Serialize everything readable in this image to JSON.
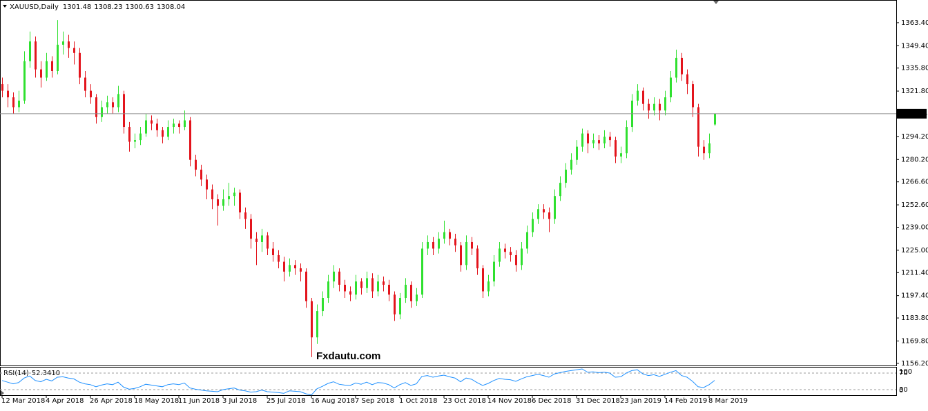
{
  "chart_data": {
    "type": "candlestick",
    "symbol": "XAUUSD,Daily",
    "up_color": "#2fe02f",
    "down_color": "#e3141c",
    "ylim": [
      1154.9,
      1377.2
    ],
    "yticks": [
      {
        "value": 1363.4,
        "label": "1363.40"
      },
      {
        "value": 1349.4,
        "label": "1349.40"
      },
      {
        "value": 1335.8,
        "label": "1335.80"
      },
      {
        "value": 1321.8,
        "label": "1321.80"
      },
      {
        "value": 1294.2,
        "label": "1294.20"
      },
      {
        "value": 1280.2,
        "label": "1280.20"
      },
      {
        "value": 1266.6,
        "label": "1266.60"
      },
      {
        "value": 1252.6,
        "label": "1252.60"
      },
      {
        "value": 1239,
        "label": "1239.00"
      },
      {
        "value": 1225,
        "label": "1225.00"
      },
      {
        "value": 1211.4,
        "label": "1211.40"
      },
      {
        "value": 1197.4,
        "label": "1197.40"
      },
      {
        "value": 1183.8,
        "label": "1183.80"
      },
      {
        "value": 1169.8,
        "label": "1169.80"
      },
      {
        "value": 1156.2,
        "label": "1156.20"
      }
    ],
    "watermark": "Fxdautu.com",
    "categories": [
      "12 Mar 2018",
      null,
      null,
      null,
      null,
      null,
      null,
      null,
      "4 Apr 2018",
      null,
      null,
      null,
      null,
      null,
      null,
      null,
      "26 Apr 2018",
      null,
      null,
      null,
      null,
      null,
      null,
      null,
      "18 May 2018",
      null,
      null,
      null,
      null,
      null,
      null,
      null,
      "11 Jun 2018",
      null,
      null,
      null,
      null,
      null,
      null,
      null,
      "3 Jul 2018",
      null,
      null,
      null,
      null,
      null,
      null,
      null,
      "25 Jul 2018",
      null,
      null,
      null,
      null,
      null,
      null,
      null,
      "16 Aug 2018",
      null,
      null,
      null,
      null,
      null,
      null,
      null,
      "7 Sep 2018",
      null,
      null,
      null,
      null,
      null,
      null,
      null,
      "1 Oct 2018",
      null,
      null,
      null,
      null,
      null,
      null,
      null,
      "23 Oct 2018",
      null,
      null,
      null,
      null,
      null,
      null,
      null,
      "14 Nov 2018",
      null,
      null,
      null,
      null,
      null,
      null,
      null,
      "6 Dec 2018",
      null,
      null,
      null,
      null,
      null,
      null,
      null,
      "31 Dec 2018",
      null,
      null,
      null,
      null,
      null,
      null,
      null,
      "23 Jan 2019",
      null,
      null,
      null,
      null,
      null,
      null,
      null,
      "14 Feb 2019",
      null,
      null,
      null,
      null,
      null,
      null,
      null,
      "8 Mar 2019",
      null
    ],
    "candles": [
      [
        1326,
        1330,
        1318,
        1322
      ],
      [
        1322,
        1326,
        1312,
        1318
      ],
      [
        1318,
        1321,
        1308,
        1312
      ],
      [
        1312,
        1322,
        1309,
        1316
      ],
      [
        1316,
        1346,
        1314,
        1340
      ],
      [
        1340,
        1358,
        1336,
        1352
      ],
      [
        1352,
        1355,
        1330,
        1335
      ],
      [
        1335,
        1340,
        1324,
        1330
      ],
      [
        1330,
        1345,
        1328,
        1340
      ],
      [
        1340,
        1343,
        1330,
        1334
      ],
      [
        1334,
        1365,
        1332,
        1350
      ],
      [
        1350,
        1358,
        1344,
        1352
      ],
      [
        1352,
        1356,
        1342,
        1348
      ],
      [
        1348,
        1352,
        1338,
        1345
      ],
      [
        1345,
        1348,
        1326,
        1330
      ],
      [
        1330,
        1334,
        1318,
        1322
      ],
      [
        1322,
        1326,
        1314,
        1318
      ],
      [
        1318,
        1320,
        1302,
        1306
      ],
      [
        1306,
        1316,
        1303,
        1312
      ],
      [
        1312,
        1319,
        1308,
        1315
      ],
      [
        1315,
        1318,
        1308,
        1312
      ],
      [
        1312,
        1325,
        1309,
        1320
      ],
      [
        1320,
        1322,
        1296,
        1300
      ],
      [
        1300,
        1303,
        1285,
        1291
      ],
      [
        1291,
        1296,
        1287,
        1292
      ],
      [
        1292,
        1300,
        1289,
        1296
      ],
      [
        1296,
        1308,
        1294,
        1304
      ],
      [
        1304,
        1307,
        1298,
        1302
      ],
      [
        1302,
        1305,
        1294,
        1298
      ],
      [
        1298,
        1300,
        1290,
        1294
      ],
      [
        1294,
        1304,
        1292,
        1300
      ],
      [
        1300,
        1305,
        1296,
        1302
      ],
      [
        1302,
        1304,
        1296,
        1300
      ],
      [
        1300,
        1310,
        1298,
        1304
      ],
      [
        1304,
        1306,
        1276,
        1280
      ],
      [
        1280,
        1283,
        1270,
        1274
      ],
      [
        1274,
        1277,
        1264,
        1268
      ],
      [
        1268,
        1271,
        1256,
        1262
      ],
      [
        1262,
        1265,
        1250,
        1256
      ],
      [
        1256,
        1259,
        1240,
        1252
      ],
      [
        1252,
        1262,
        1249,
        1256
      ],
      [
        1256,
        1266,
        1252,
        1258
      ],
      [
        1258,
        1263,
        1252,
        1260
      ],
      [
        1260,
        1262,
        1244,
        1248
      ],
      [
        1248,
        1251,
        1238,
        1244
      ],
      [
        1244,
        1247,
        1226,
        1232
      ],
      [
        1232,
        1236,
        1216,
        1230
      ],
      [
        1230,
        1238,
        1224,
        1234
      ],
      [
        1234,
        1236,
        1222,
        1226
      ],
      [
        1226,
        1230,
        1218,
        1222
      ],
      [
        1222,
        1225,
        1214,
        1218
      ],
      [
        1218,
        1221,
        1206,
        1212
      ],
      [
        1212,
        1220,
        1209,
        1216
      ],
      [
        1216,
        1219,
        1210,
        1214
      ],
      [
        1214,
        1217,
        1206,
        1212
      ],
      [
        1212,
        1214,
        1190,
        1194
      ],
      [
        1194,
        1196,
        1160,
        1172
      ],
      [
        1172,
        1192,
        1168,
        1188
      ],
      [
        1188,
        1200,
        1185,
        1196
      ],
      [
        1196,
        1210,
        1193,
        1206
      ],
      [
        1206,
        1216,
        1202,
        1212
      ],
      [
        1212,
        1214,
        1200,
        1204
      ],
      [
        1204,
        1207,
        1196,
        1200
      ],
      [
        1200,
        1203,
        1194,
        1198
      ],
      [
        1198,
        1210,
        1195,
        1206
      ],
      [
        1206,
        1208,
        1198,
        1202
      ],
      [
        1202,
        1212,
        1199,
        1208
      ],
      [
        1208,
        1211,
        1196,
        1200
      ],
      [
        1200,
        1210,
        1197,
        1206
      ],
      [
        1206,
        1209,
        1200,
        1204
      ],
      [
        1204,
        1207,
        1194,
        1198
      ],
      [
        1198,
        1200,
        1182,
        1186
      ],
      [
        1186,
        1199,
        1183,
        1196
      ],
      [
        1196,
        1208,
        1193,
        1204
      ],
      [
        1204,
        1206,
        1190,
        1194
      ],
      [
        1194,
        1202,
        1191,
        1198
      ],
      [
        1198,
        1230,
        1196,
        1226
      ],
      [
        1226,
        1234,
        1222,
        1230
      ],
      [
        1230,
        1233,
        1222,
        1226
      ],
      [
        1226,
        1236,
        1223,
        1232
      ],
      [
        1232,
        1243,
        1229,
        1236
      ],
      [
        1236,
        1238,
        1228,
        1232
      ],
      [
        1232,
        1235,
        1224,
        1228
      ],
      [
        1228,
        1230,
        1212,
        1216
      ],
      [
        1216,
        1234,
        1213,
        1230
      ],
      [
        1230,
        1233,
        1222,
        1226
      ],
      [
        1226,
        1228,
        1210,
        1214
      ],
      [
        1214,
        1216,
        1196,
        1200
      ],
      [
        1200,
        1210,
        1197,
        1206
      ],
      [
        1206,
        1222,
        1203,
        1218
      ],
      [
        1218,
        1230,
        1215,
        1226
      ],
      [
        1226,
        1229,
        1220,
        1224
      ],
      [
        1224,
        1227,
        1218,
        1222
      ],
      [
        1222,
        1225,
        1212,
        1216
      ],
      [
        1216,
        1230,
        1213,
        1226
      ],
      [
        1226,
        1240,
        1223,
        1236
      ],
      [
        1236,
        1248,
        1233,
        1244
      ],
      [
        1244,
        1253,
        1241,
        1250
      ],
      [
        1250,
        1253,
        1244,
        1248
      ],
      [
        1248,
        1251,
        1236,
        1244
      ],
      [
        1244,
        1262,
        1241,
        1258
      ],
      [
        1258,
        1270,
        1255,
        1266
      ],
      [
        1266,
        1278,
        1263,
        1274
      ],
      [
        1274,
        1284,
        1271,
        1280
      ],
      [
        1280,
        1292,
        1277,
        1288
      ],
      [
        1288,
        1299,
        1285,
        1296
      ],
      [
        1296,
        1298,
        1284,
        1290
      ],
      [
        1290,
        1296,
        1287,
        1292
      ],
      [
        1292,
        1295,
        1286,
        1290
      ],
      [
        1290,
        1298,
        1287,
        1294
      ],
      [
        1294,
        1297,
        1288,
        1292
      ],
      [
        1292,
        1294,
        1278,
        1282
      ],
      [
        1282,
        1288,
        1278,
        1284
      ],
      [
        1284,
        1304,
        1281,
        1300
      ],
      [
        1300,
        1320,
        1297,
        1316
      ],
      [
        1316,
        1326,
        1313,
        1322
      ],
      [
        1322,
        1324,
        1310,
        1314
      ],
      [
        1314,
        1317,
        1305,
        1310
      ],
      [
        1310,
        1318,
        1307,
        1314
      ],
      [
        1314,
        1317,
        1304,
        1310
      ],
      [
        1310,
        1322,
        1307,
        1318
      ],
      [
        1318,
        1334,
        1315,
        1330
      ],
      [
        1330,
        1347,
        1327,
        1342
      ],
      [
        1342,
        1345,
        1328,
        1332
      ],
      [
        1332,
        1335,
        1320,
        1326
      ],
      [
        1326,
        1328,
        1306,
        1312
      ],
      [
        1312,
        1314,
        1282,
        1288
      ],
      [
        1288,
        1292,
        1280,
        1284
      ],
      [
        1284,
        1296,
        1281,
        1290
      ],
      [
        1301.48,
        1308.23,
        1300.63,
        1308.04
      ]
    ],
    "indicator": {
      "name": "RSI(14)",
      "value_label": "52.3410",
      "color": "#1e90ff",
      "yticks": [
        100,
        70,
        30,
        0
      ],
      "values": [
        52,
        48,
        44,
        47,
        58,
        63,
        52,
        49,
        55,
        51,
        60,
        61,
        58,
        56,
        48,
        44,
        42,
        37,
        41,
        44,
        42,
        48,
        36,
        31,
        33,
        37,
        43,
        41,
        39,
        37,
        42,
        44,
        42,
        46,
        34,
        31,
        29,
        27,
        26,
        25,
        30,
        32,
        34,
        29,
        27,
        24,
        25,
        29,
        25,
        24,
        23,
        21,
        27,
        26,
        25,
        20,
        17,
        32,
        38,
        45,
        49,
        43,
        41,
        40,
        46,
        43,
        48,
        42,
        47,
        46,
        42,
        34,
        42,
        47,
        40,
        44,
        62,
        64,
        60,
        63,
        65,
        61,
        58,
        49,
        58,
        55,
        47,
        40,
        45,
        52,
        57,
        55,
        54,
        50,
        56,
        61,
        64,
        67,
        64,
        60,
        68,
        71,
        74,
        76,
        78,
        80,
        72,
        73,
        71,
        72,
        70,
        60,
        61,
        70,
        76,
        78,
        68,
        64,
        66,
        62,
        67,
        72,
        76,
        64,
        60,
        50,
        37,
        35,
        42,
        52.341
      ]
    }
  }
}
